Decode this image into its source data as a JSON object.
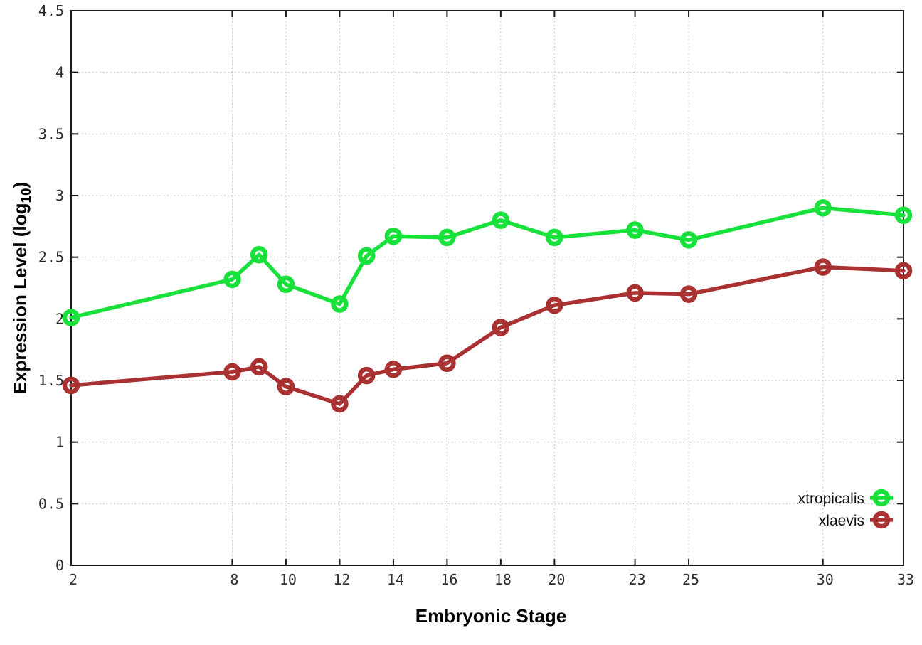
{
  "chart_data": {
    "type": "line",
    "title": "",
    "xlabel": "Embryonic Stage",
    "ylabel": "Expression Level (log10)",
    "ylabel_parts": {
      "main": "Expression Level (log",
      "sub": "10",
      "end": ")"
    },
    "x": [
      2,
      8,
      9,
      10,
      12,
      13,
      14,
      16,
      18,
      20,
      23,
      25,
      30,
      33
    ],
    "series": [
      {
        "name": "xtropicalis",
        "color": "#17e13a",
        "values": [
          2.01,
          2.32,
          2.52,
          2.28,
          2.12,
          2.51,
          2.67,
          2.66,
          2.8,
          2.66,
          2.72,
          2.64,
          2.9,
          2.84
        ]
      },
      {
        "name": "xlaevis",
        "color": "#a93131",
        "values": [
          1.46,
          1.57,
          1.61,
          1.45,
          1.31,
          1.54,
          1.59,
          1.64,
          1.93,
          2.11,
          2.21,
          2.2,
          2.42,
          2.39
        ]
      }
    ],
    "xlim": [
      2,
      33
    ],
    "ylim": [
      0,
      4.5
    ],
    "xticks": [
      2,
      8,
      10,
      12,
      14,
      16,
      18,
      20,
      23,
      25,
      30,
      33
    ],
    "xtick_labels": [
      "2",
      "8",
      "10",
      "12",
      "14",
      "16",
      "18",
      "20",
      "23",
      "25",
      "30",
      "33"
    ],
    "yticks": [
      0,
      0.5,
      1,
      1.5,
      2,
      2.5,
      3,
      3.5,
      4,
      4.5
    ],
    "ytick_labels": [
      "0",
      "0.5",
      "1",
      "1.5",
      "2",
      "2.5",
      "3",
      "3.5",
      "4",
      "4.5"
    ],
    "grid": true,
    "legend_position": "inside-bottom-right",
    "legend_entries": [
      "xtropicalis",
      "xlaevis"
    ]
  },
  "colors": {
    "background": "#ffffff",
    "border": "#1a1a1a",
    "grid": "#b5b5b5",
    "tick_text": "#2e2e2e",
    "series_green": "#17e13a",
    "series_red": "#a93131"
  }
}
